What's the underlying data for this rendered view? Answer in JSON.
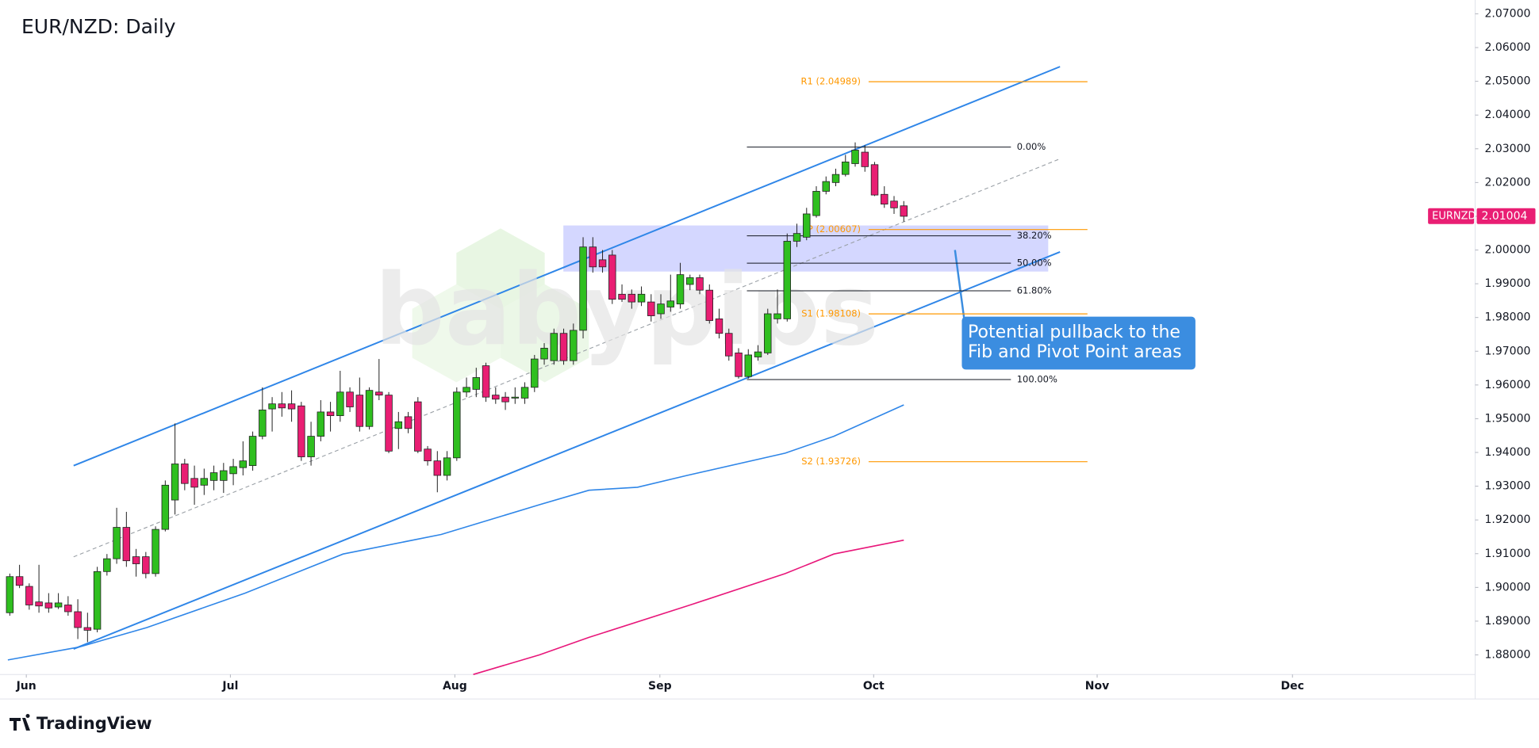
{
  "chart_data": {
    "type": "candlestick",
    "title": "EUR/NZD: Daily",
    "symbol": "EURNZD",
    "last_price": 2.01004,
    "up_color": "#2fbf1f",
    "down_color": "#e91e73",
    "xlim": [
      -0.2,
      150.8
    ],
    "xticks": [
      {
        "value": 1.7,
        "label": "Jun"
      },
      {
        "value": 22.7,
        "label": "Jul"
      },
      {
        "value": 45.8,
        "label": "Aug"
      },
      {
        "value": 66.9,
        "label": "Sep"
      },
      {
        "value": 88.9,
        "label": "Oct"
      },
      {
        "value": 111.9,
        "label": "Nov"
      },
      {
        "value": 132,
        "label": "Dec"
      }
    ],
    "ylim": [
      1.8742,
      2.0741
    ],
    "yticks": [
      {
        "value": 1.88,
        "label": "1.88000"
      },
      {
        "value": 1.89,
        "label": "1.89000"
      },
      {
        "value": 1.9,
        "label": "1.90000"
      },
      {
        "value": 1.91,
        "label": "1.91000"
      },
      {
        "value": 1.92,
        "label": "1.92000"
      },
      {
        "value": 1.93,
        "label": "1.93000"
      },
      {
        "value": 1.94,
        "label": "1.94000"
      },
      {
        "value": 1.95,
        "label": "1.95000"
      },
      {
        "value": 1.96,
        "label": "1.96000"
      },
      {
        "value": 1.97,
        "label": "1.97000"
      },
      {
        "value": 1.98,
        "label": "1.98000"
      },
      {
        "value": 1.99,
        "label": "1.99000"
      },
      {
        "value": 2.0,
        "label": "2.00000"
      },
      {
        "value": 2.01,
        "label": "2.01000"
      },
      {
        "value": 2.02,
        "label": "2.02000"
      },
      {
        "value": 2.03,
        "label": "2.03000"
      },
      {
        "value": 2.04,
        "label": "2.04000"
      },
      {
        "value": 2.05,
        "label": "2.05000"
      },
      {
        "value": 2.06,
        "label": "2.06000"
      },
      {
        "value": 2.07,
        "label": "2.07000"
      }
    ],
    "open": [
      1.8925,
      1.9032,
      1.9003,
      1.8957,
      1.8954,
      1.8942,
      1.8948,
      1.8928,
      1.8881,
      1.8876,
      1.9047,
      1.9085,
      1.9178,
      1.9091,
      1.9091,
      1.9041,
      1.9172,
      1.9259,
      1.9366,
      1.9323,
      1.9303,
      1.9317,
      1.9317,
      1.9337,
      1.9355,
      1.9361,
      1.9448,
      1.9529,
      1.9544,
      1.9544,
      1.9538,
      1.9387,
      1.9448,
      1.952,
      1.9509,
      1.9579,
      1.957,
      1.9477,
      1.9579,
      1.957,
      1.9471,
      1.9506,
      1.955,
      1.941,
      1.9375,
      1.9332,
      1.9384,
      1.9579,
      1.9587,
      1.9657,
      1.957,
      1.9564,
      1.9561,
      1.9561,
      1.9593,
      1.9677,
      1.9672,
      1.9753,
      1.9672,
      1.9762,
      2.0009,
      1.9971,
      1.9985,
      1.9869,
      1.9869,
      1.9846,
      1.9846,
      1.9811,
      1.9831,
      1.984,
      1.9898,
      1.9918,
      1.9881,
      1.9796,
      1.9753,
      1.9695,
      1.9625,
      1.9683,
      1.9695,
      1.9796,
      1.9796,
      2.0026,
      2.0038,
      2.0102,
      2.0174,
      2.02,
      2.0224,
      2.0256,
      2.029,
      2.0253,
      2.0165,
      2.0145,
      2.0131
    ],
    "high": [
      1.9041,
      1.9067,
      1.9012,
      1.9067,
      1.8983,
      1.8983,
      1.8974,
      1.8965,
      1.8925,
      1.9061,
      1.9099,
      1.9236,
      1.9224,
      1.9114,
      1.9105,
      1.9181,
      1.9317,
      1.9486,
      1.9381,
      1.9361,
      1.9352,
      1.9361,
      1.9369,
      1.9381,
      1.9433,
      1.9462,
      1.9593,
      1.9564,
      1.9579,
      1.9584,
      1.955,
      1.9491,
      1.9555,
      1.955,
      1.9642,
      1.9593,
      1.9622,
      1.9593,
      1.9677,
      1.9579,
      1.952,
      1.952,
      1.9564,
      1.9419,
      1.9404,
      1.9404,
      1.9593,
      1.9622,
      1.9651,
      1.9666,
      1.9593,
      1.9579,
      1.9593,
      1.9608,
      1.9689,
      1.9724,
      1.9767,
      1.9767,
      1.9782,
      2.0038,
      2.0038,
      2.0,
      2.0,
      1.9898,
      1.9883,
      1.9892,
      1.9869,
      1.9869,
      1.9927,
      1.9962,
      1.9927,
      1.9927,
      1.9898,
      1.9826,
      1.9767,
      1.9709,
      1.9706,
      1.9718,
      1.9826,
      1.9883,
      2.0049,
      2.0078,
      2.0125,
      2.0189,
      2.0218,
      2.0241,
      2.0282,
      2.0319,
      2.0311,
      2.0261,
      2.0189,
      2.016,
      2.0145
    ],
    "low": [
      1.8916,
      1.8998,
      1.8934,
      1.8925,
      1.8925,
      1.8936,
      1.8916,
      1.8847,
      1.8838,
      1.8867,
      1.9035,
      1.907,
      1.9061,
      1.9032,
      1.9027,
      1.9032,
      1.9166,
      1.9216,
      1.9288,
      1.9245,
      1.9274,
      1.9288,
      1.928,
      1.9303,
      1.9332,
      1.9346,
      1.9439,
      1.9462,
      1.9506,
      1.9491,
      1.9375,
      1.9361,
      1.9433,
      1.9462,
      1.9491,
      1.952,
      1.9462,
      1.9468,
      1.9555,
      1.9398,
      1.941,
      1.9457,
      1.9398,
      1.9361,
      1.9282,
      1.9317,
      1.9375,
      1.9564,
      1.9564,
      1.955,
      1.9544,
      1.9526,
      1.9544,
      1.9544,
      1.9579,
      1.966,
      1.966,
      1.966,
      1.966,
      1.9738,
      1.9933,
      1.9933,
      1.984,
      1.9846,
      1.9826,
      1.9834,
      1.9788,
      1.9796,
      1.9817,
      1.9826,
      1.9881,
      1.9869,
      1.9782,
      1.9738,
      1.9672,
      1.9619,
      1.9619,
      1.9672,
      1.9689,
      1.9782,
      1.9788,
      2.0009,
      2.0029,
      2.0096,
      2.0165,
      2.0189,
      2.0218,
      2.0247,
      2.0232,
      2.016,
      2.0125,
      2.0107,
      2.0084
    ],
    "close": [
      1.9032,
      1.9006,
      1.8948,
      1.8945,
      1.8939,
      1.8954,
      1.8928,
      1.8881,
      1.8873,
      1.9047,
      1.9085,
      1.9178,
      1.9079,
      1.907,
      1.9041,
      1.9172,
      1.9303,
      1.9366,
      1.9308,
      1.9297,
      1.9323,
      1.934,
      1.9346,
      1.9358,
      1.9375,
      1.9448,
      1.9526,
      1.9544,
      1.9532,
      1.9529,
      1.9387,
      1.9448,
      1.952,
      1.9509,
      1.9579,
      1.9535,
      1.9477,
      1.9584,
      1.957,
      1.9404,
      1.9491,
      1.9471,
      1.9404,
      1.9375,
      1.9332,
      1.9384,
      1.9579,
      1.9593,
      1.9622,
      1.9564,
      1.9558,
      1.955,
      1.9564,
      1.9593,
      1.9677,
      1.9709,
      1.9753,
      1.9672,
      1.9762,
      2.0009,
      1.995,
      1.995,
      1.9854,
      1.9854,
      1.9846,
      1.9869,
      1.9805,
      1.984,
      1.9849,
      1.9927,
      1.9918,
      1.9881,
      1.9791,
      1.9753,
      1.9686,
      1.9625,
      1.9689,
      1.9698,
      1.9811,
      1.9811,
      2.0026,
      2.0049,
      2.0107,
      2.0174,
      2.0203,
      2.0224,
      2.0261,
      2.0296,
      2.0247,
      2.0163,
      2.0136,
      2.0125,
      2.01
    ],
    "series": [
      {
        "color": "#2f86e8",
        "x": [
          -0.2,
          7.1,
          14.1,
          24.2,
          34.3,
          44.4,
          54.5,
          59.6,
          64.6,
          69.7,
          79.8,
          84.8,
          92.0
        ],
        "values": [
          1.8785,
          1.8823,
          1.8881,
          1.8983,
          1.9099,
          1.9157,
          1.9245,
          1.9288,
          1.9297,
          1.9332,
          1.9398,
          1.9448,
          1.9541
        ]
      },
      {
        "color": "#e8177a",
        "x": [
          47.7,
          54.5,
          59.6,
          69.7,
          79.8,
          84.8,
          92.0
        ],
        "values": [
          1.8742,
          1.88,
          1.8852,
          1.8945,
          1.9041,
          1.9099,
          1.914
        ]
      }
    ],
    "fib_levels": [
      {
        "label": "0.00%",
        "value": 2.0305
      },
      {
        "label": "38.20%",
        "value": 2.0042
      },
      {
        "label": "50.00%",
        "value": 1.9961
      },
      {
        "label": "61.80%",
        "value": 1.9879
      },
      {
        "label": "100.00%",
        "value": 1.9616
      }
    ],
    "pivots": [
      {
        "label": "R1 (2.04989)",
        "value": 2.04989
      },
      {
        "label": "P (2.00607)",
        "value": 2.00607
      },
      {
        "label": "S1 (1.98108)",
        "value": 1.98108
      },
      {
        "label": "S2 (1.93726)",
        "value": 1.93726
      }
    ],
    "annotation": [
      "Potential pullback to the",
      "Fib and Pivot Point areas"
    ],
    "watermark": "babypips",
    "brand": "TradingView"
  }
}
